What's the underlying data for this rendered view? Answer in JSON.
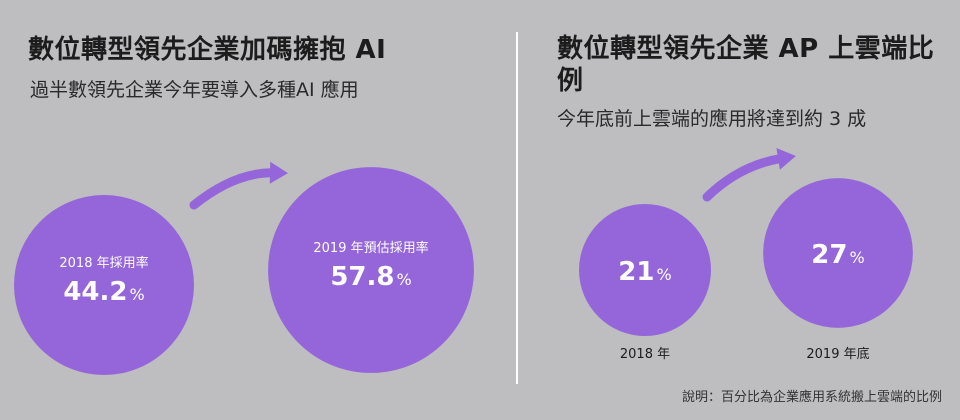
{
  "left": {
    "title": "數位轉型領先企業加碼擁抱 AI",
    "subtitle": "過半數領先企業今年要導入多種AI 應用"
  },
  "right": {
    "title": "數位轉型領先企業 AP 上雲端比例",
    "subtitle": "今年底前上雲端的應用將達到約 3 成"
  },
  "note": "說明：百分比為企業應用系統搬上雲端的比例",
  "colors": {
    "background": "#bebec0",
    "circle": "#9566d9",
    "divider": "#ffffff"
  },
  "chart_data": [
    {
      "type": "bubble",
      "unit": "%",
      "categories": [
        "2018 年採用率",
        "2019 年預估採用率"
      ],
      "values": [
        44.2,
        57.8
      ],
      "title": "數位轉型領先企業加碼擁抱 AI",
      "subtitle": "過半數領先企業今年要導入多種AI 應用"
    },
    {
      "type": "bubble",
      "unit": "%",
      "categories": [
        "2018 年",
        "2019 年底"
      ],
      "values": [
        21,
        27
      ],
      "title": "數位轉型領先企業 AP 上雲端比例",
      "subtitle": "今年底前上雲端的應用將達到約 3 成"
    }
  ]
}
